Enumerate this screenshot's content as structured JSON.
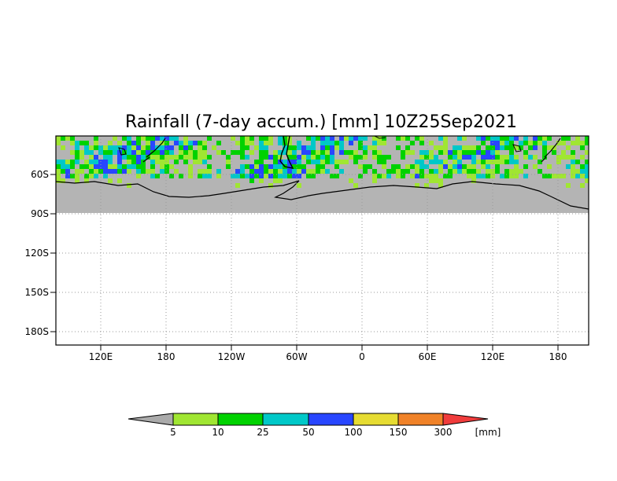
{
  "title": "Rainfall (7-day accum.) [mm] 10Z25Sep2021",
  "map": {
    "projection": "lat-lon",
    "lon_ticks": [
      "120E",
      "180",
      "120W",
      "60W",
      "0",
      "60E",
      "120E",
      "180"
    ],
    "lat_ticks": [
      "60S",
      "90S",
      "120S",
      "150S",
      "180S"
    ],
    "grid": "dotted",
    "no_data_color": "#b4b4b4",
    "coastline_color": "#000000"
  },
  "colorbar": {
    "unit_label": "[mm]",
    "tick_labels": [
      "5",
      "10",
      "25",
      "50",
      "100",
      "150",
      "300"
    ],
    "colors": [
      "#aaaaaa",
      "#a0e632",
      "#00d200",
      "#00c8c8",
      "#2846ff",
      "#e6dc32",
      "#f08228",
      "#f03c3c"
    ]
  }
}
